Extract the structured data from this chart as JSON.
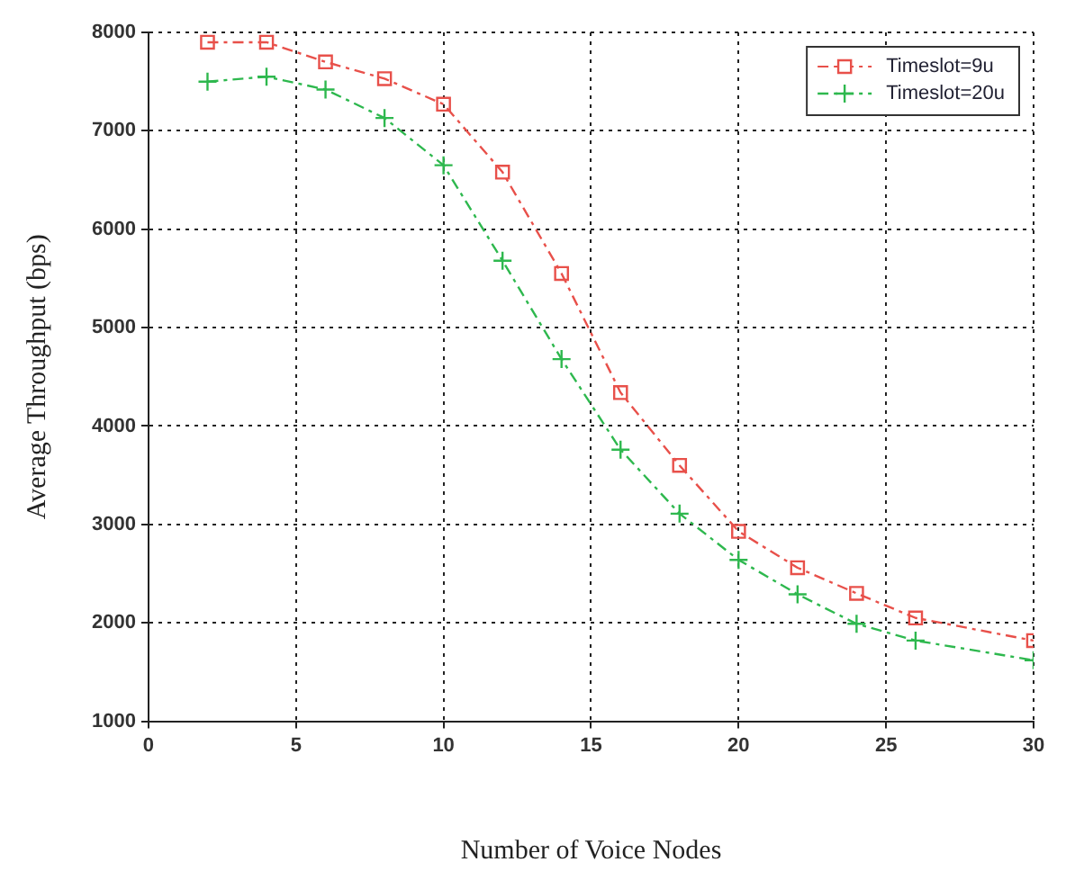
{
  "chart_data": {
    "type": "line",
    "xlabel": "Number of Voice Nodes",
    "ylabel": "Average Throughput (bps)",
    "x": [
      2,
      4,
      6,
      8,
      10,
      12,
      14,
      16,
      18,
      20,
      22,
      24,
      26,
      30
    ],
    "xlim": [
      0,
      30
    ],
    "xticks": [
      0,
      5,
      10,
      15,
      20,
      25,
      30
    ],
    "ylim": [
      1000,
      8000
    ],
    "yticks": [
      1000,
      2000,
      3000,
      4000,
      5000,
      6000,
      7000,
      8000
    ],
    "grid": true,
    "legend": "top right",
    "line_style": "dashed",
    "series": [
      {
        "name": "Timeslot=9u",
        "color": "#e8504a",
        "marker": "square",
        "values": [
          7900,
          7900,
          7700,
          7530,
          7270,
          6580,
          5550,
          4340,
          3600,
          2930,
          2560,
          2300,
          2050,
          1820
        ]
      },
      {
        "name": "Timeslot=20u",
        "color": "#2eb84e",
        "marker": "cross",
        "values": [
          7500,
          7550,
          7420,
          7130,
          6650,
          5680,
          4680,
          3760,
          3110,
          2640,
          2290,
          1990,
          1820,
          1620
        ]
      }
    ]
  }
}
